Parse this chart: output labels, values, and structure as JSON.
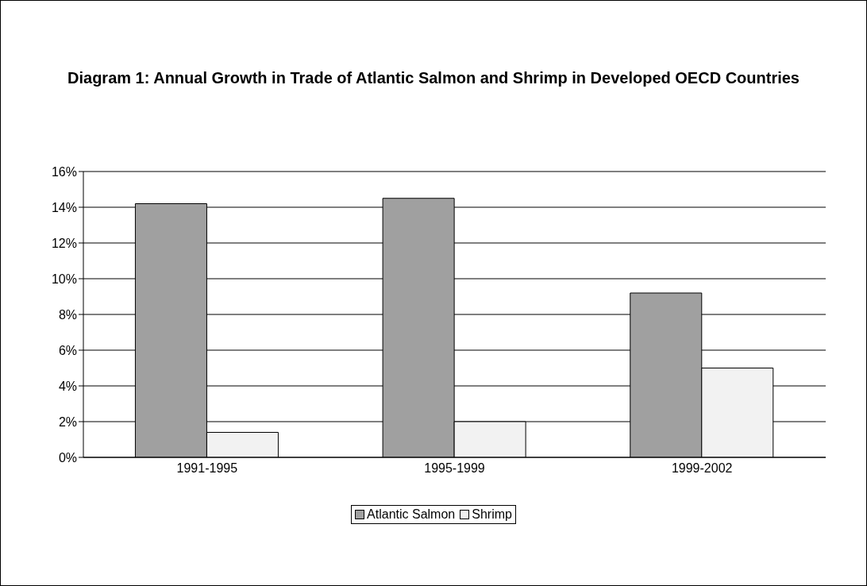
{
  "chart_data": {
    "type": "bar",
    "title": "Diagram 1: Annual Growth in Trade of Atlantic Salmon and Shrimp in Developed OECD Countries",
    "categories": [
      "1991-1995",
      "1995-1999",
      "1999-2002"
    ],
    "series": [
      {
        "name": "Atlantic Salmon",
        "color": "#a0a0a0",
        "values": [
          14.2,
          14.5,
          9.2
        ]
      },
      {
        "name": "Shrimp",
        "color": "#f2f2f2",
        "values": [
          1.4,
          2.0,
          5.0
        ]
      }
    ],
    "ylim": [
      0,
      16
    ],
    "yticks": [
      {
        "value": 0,
        "label": "0%"
      },
      {
        "value": 2,
        "label": "2%"
      },
      {
        "value": 4,
        "label": "4%"
      },
      {
        "value": 6,
        "label": "6%"
      },
      {
        "value": 8,
        "label": "8%"
      },
      {
        "value": 10,
        "label": "10%"
      },
      {
        "value": 12,
        "label": "12%"
      },
      {
        "value": 14,
        "label": "14%"
      },
      {
        "value": 16,
        "label": "16%"
      }
    ],
    "grid": "y",
    "legend": "bottom"
  }
}
